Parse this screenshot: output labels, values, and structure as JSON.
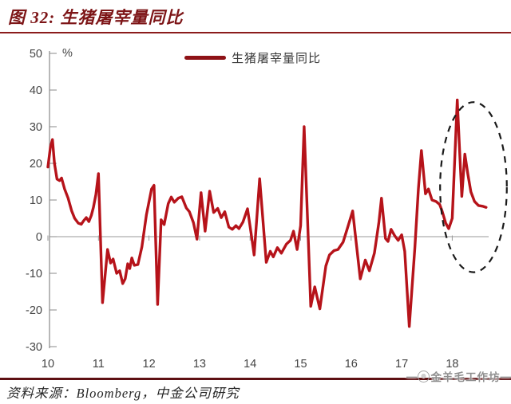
{
  "header": {
    "title": "图 32: 生猪屠宰量同比"
  },
  "legend": {
    "label": "生猪屠宰量同比"
  },
  "colors": {
    "line": "#b6131a",
    "legend_swatch": "#8e1216",
    "title": "#7d1517",
    "title_rule": "#8b1c1c",
    "footer_rule": "#5e1013",
    "axis": "#8a8a8a",
    "tick_label": "#454545",
    "annotation": "#1a1a1a"
  },
  "chart_data": {
    "type": "line",
    "title": "生猪屠宰量同比",
    "unit_label": "%",
    "xlim": [
      10,
      18.75
    ],
    "ylim": [
      -30,
      50
    ],
    "x_ticks": [
      10,
      11,
      12,
      13,
      14,
      15,
      16,
      17,
      18
    ],
    "y_ticks": [
      50,
      40,
      30,
      20,
      10,
      0,
      -10,
      -20,
      -30
    ],
    "grid": false,
    "legend_position": "top-center",
    "series": [
      {
        "name": "生猪屠宰量同比",
        "color": "#b6131a",
        "points": [
          [
            10.0,
            19.0
          ],
          [
            10.05,
            24.5
          ],
          [
            10.09,
            26.5
          ],
          [
            10.13,
            20.0
          ],
          [
            10.18,
            15.7
          ],
          [
            10.23,
            15.3
          ],
          [
            10.27,
            16.0
          ],
          [
            10.33,
            13.0
          ],
          [
            10.4,
            10.5
          ],
          [
            10.47,
            7.0
          ],
          [
            10.53,
            5.0
          ],
          [
            10.6,
            3.7
          ],
          [
            10.66,
            3.4
          ],
          [
            10.71,
            4.4
          ],
          [
            10.76,
            5.2
          ],
          [
            10.81,
            4.1
          ],
          [
            10.86,
            5.8
          ],
          [
            10.9,
            8.0
          ],
          [
            10.95,
            11.5
          ],
          [
            11.0,
            17.2
          ],
          [
            11.08,
            -18.0
          ],
          [
            11.18,
            -3.5
          ],
          [
            11.24,
            -7.2
          ],
          [
            11.29,
            -6.1
          ],
          [
            11.36,
            -10.0
          ],
          [
            11.42,
            -9.3
          ],
          [
            11.48,
            -12.8
          ],
          [
            11.53,
            -11.5
          ],
          [
            11.58,
            -7.4
          ],
          [
            11.62,
            -8.7
          ],
          [
            11.66,
            -5.8
          ],
          [
            11.71,
            -7.8
          ],
          [
            11.78,
            -7.6
          ],
          [
            11.86,
            -2.8
          ],
          [
            11.95,
            6.0
          ],
          [
            12.05,
            13.0
          ],
          [
            12.1,
            14.0
          ],
          [
            12.17,
            -18.5
          ],
          [
            12.24,
            4.6
          ],
          [
            12.3,
            3.3
          ],
          [
            12.38,
            9.0
          ],
          [
            12.44,
            10.8
          ],
          [
            12.5,
            9.4
          ],
          [
            12.58,
            10.5
          ],
          [
            12.65,
            10.9
          ],
          [
            12.74,
            7.8
          ],
          [
            12.8,
            6.8
          ],
          [
            12.88,
            3.8
          ],
          [
            12.95,
            -0.7
          ],
          [
            13.03,
            12.0
          ],
          [
            13.11,
            1.5
          ],
          [
            13.2,
            12.4
          ],
          [
            13.28,
            6.6
          ],
          [
            13.36,
            7.7
          ],
          [
            13.43,
            5.2
          ],
          [
            13.5,
            6.8
          ],
          [
            13.58,
            2.6
          ],
          [
            13.65,
            2.0
          ],
          [
            13.72,
            3.0
          ],
          [
            13.78,
            2.2
          ],
          [
            13.86,
            4.0
          ],
          [
            13.95,
            7.6
          ],
          [
            14.03,
            0.0
          ],
          [
            14.08,
            -5.0
          ],
          [
            14.19,
            15.8
          ],
          [
            14.32,
            -7.0
          ],
          [
            14.4,
            -4.0
          ],
          [
            14.46,
            -5.5
          ],
          [
            14.54,
            -3.0
          ],
          [
            14.62,
            -4.5
          ],
          [
            14.72,
            -2.0
          ],
          [
            14.8,
            -1.0
          ],
          [
            14.86,
            1.5
          ],
          [
            14.93,
            -3.5
          ],
          [
            15.0,
            3.0
          ],
          [
            15.07,
            30.0
          ],
          [
            15.2,
            -19.0
          ],
          [
            15.28,
            -13.7
          ],
          [
            15.38,
            -19.7
          ],
          [
            15.5,
            -8.0
          ],
          [
            15.57,
            -5.0
          ],
          [
            15.66,
            -3.8
          ],
          [
            15.74,
            -3.5
          ],
          [
            15.84,
            -1.5
          ],
          [
            15.93,
            2.5
          ],
          [
            16.03,
            7.0
          ],
          [
            16.18,
            -11.5
          ],
          [
            16.28,
            -6.4
          ],
          [
            16.36,
            -9.3
          ],
          [
            16.46,
            -4.5
          ],
          [
            16.55,
            4.0
          ],
          [
            16.6,
            10.5
          ],
          [
            16.68,
            -0.5
          ],
          [
            16.73,
            -1.3
          ],
          [
            16.79,
            2.0
          ],
          [
            16.86,
            0.3
          ],
          [
            16.93,
            -1.0
          ],
          [
            17.0,
            0.5
          ],
          [
            17.06,
            -4.0
          ],
          [
            17.15,
            -24.5
          ],
          [
            17.26,
            -3.0
          ],
          [
            17.33,
            13.0
          ],
          [
            17.39,
            23.5
          ],
          [
            17.47,
            11.7
          ],
          [
            17.53,
            13.0
          ],
          [
            17.6,
            10.0
          ],
          [
            17.68,
            9.6
          ],
          [
            17.75,
            8.8
          ],
          [
            17.8,
            7.0
          ],
          [
            17.87,
            3.7
          ],
          [
            17.93,
            2.2
          ],
          [
            18.0,
            5.0
          ],
          [
            18.1,
            37.3
          ],
          [
            18.14,
            25.0
          ],
          [
            18.19,
            11.0
          ],
          [
            18.25,
            22.5
          ],
          [
            18.31,
            17.0
          ],
          [
            18.37,
            12.2
          ],
          [
            18.44,
            9.6
          ],
          [
            18.52,
            8.5
          ],
          [
            18.6,
            8.3
          ],
          [
            18.67,
            8.0
          ]
        ]
      }
    ],
    "annotations": [
      {
        "type": "dashed_ellipse",
        "x": 18.42,
        "y": 13.5,
        "rx": 0.66,
        "ry": 23.2
      }
    ]
  },
  "footer": {
    "source": "资料来源：Bloomberg，中金公司研究",
    "watermark": "金羊毛工作坊",
    "watermark_dash_left": "—",
    "watermark_dash_right": "—"
  }
}
